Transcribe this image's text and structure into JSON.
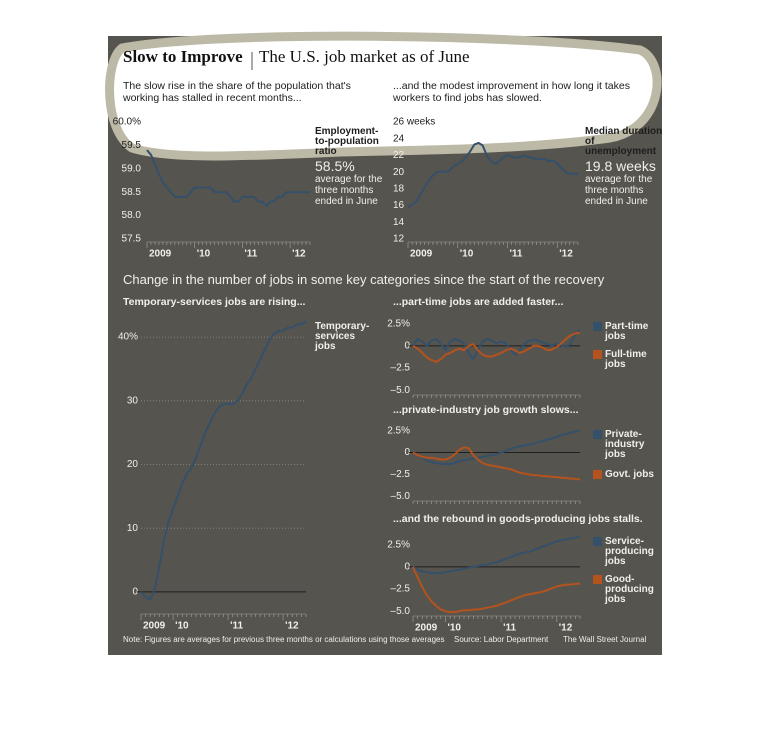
{
  "header": {
    "title": "Slow to Improve",
    "subtitle": "The U.S. job market as of June"
  },
  "section_title": "Change in the number of jobs in some key categories since the start of the recovery",
  "footer": {
    "note": "Note: Figures are averages for previous three months or calculations using those averages",
    "source": "Source: Labor Department",
    "credit": "The Wall Street Journal"
  },
  "chart_data": [
    {
      "type": "line",
      "title": "The slow rise in the share of the population that's working has stalled in recent months...",
      "categories": [
        "2009",
        null,
        null,
        null,
        null,
        null,
        null,
        null,
        null,
        null,
        null,
        null,
        "'10",
        null,
        null,
        null,
        null,
        null,
        null,
        null,
        null,
        null,
        null,
        null,
        "'11",
        null,
        null,
        null,
        null,
        null,
        null,
        null,
        null,
        null,
        null,
        null,
        "'12",
        null,
        null,
        null,
        null,
        null
      ],
      "ylim": [
        57.5,
        60.0
      ],
      "yticks": [
        57.5,
        {
          "value": 58.0,
          "label": "58.0"
        },
        58.5,
        {
          "value": 59.0,
          "label": "59.0"
        },
        59.5,
        {
          "value": 60.0,
          "label": "60.0%"
        }
      ],
      "grid": false,
      "series": [
        {
          "name": "Employment-to-population ratio",
          "color": "#34506a",
          "values": [
            59.4,
            59.3,
            59.1,
            58.9,
            58.7,
            58.6,
            58.5,
            58.4,
            58.4,
            58.4,
            58.4,
            58.5,
            58.6,
            58.6,
            58.6,
            58.6,
            58.6,
            58.5,
            58.5,
            58.5,
            58.5,
            58.4,
            58.3,
            58.3,
            58.4,
            58.4,
            58.4,
            58.4,
            58.3,
            58.3,
            58.2,
            58.3,
            58.3,
            58.4,
            58.4,
            58.5,
            58.5,
            58.5,
            58.5,
            58.5,
            58.5,
            58.5
          ]
        }
      ],
      "callout": "58.5%",
      "callout_note": "average for the three months ended in June"
    },
    {
      "type": "line",
      "title": "...and the modest improvement in how long it takes workers to find jobs has slowed.",
      "categories": [
        "2009",
        null,
        null,
        null,
        null,
        null,
        null,
        null,
        null,
        null,
        null,
        null,
        "'10",
        null,
        null,
        null,
        null,
        null,
        null,
        null,
        null,
        null,
        null,
        null,
        "'11",
        null,
        null,
        null,
        null,
        null,
        null,
        null,
        null,
        null,
        null,
        null,
        "'12",
        null,
        null,
        null,
        null,
        null
      ],
      "ylim": [
        12,
        26
      ],
      "yticks": [
        12,
        14,
        16,
        18,
        20,
        22,
        24,
        {
          "value": 26,
          "label": "26 weeks"
        }
      ],
      "grid": false,
      "series": [
        {
          "name": "Median duration of unemployment",
          "color": "#34506a",
          "values": [
            15.8,
            16.1,
            16.5,
            17.3,
            18.2,
            19.0,
            19.6,
            20.0,
            20.1,
            20.0,
            20.2,
            20.7,
            21.0,
            21.3,
            21.8,
            22.5,
            23.3,
            23.5,
            23.2,
            22.0,
            21.3,
            21.0,
            21.3,
            21.8,
            22.0,
            21.9,
            21.7,
            21.8,
            22.0,
            21.8,
            21.7,
            21.5,
            21.6,
            21.6,
            21.3,
            21.4,
            21.0,
            20.5,
            20.0,
            19.8,
            19.8,
            19.8
          ]
        }
      ],
      "callout": "19.8 weeks",
      "callout_note": "average for the three months ended in June"
    },
    {
      "type": "line",
      "title": "Temporary-services jobs are rising...",
      "categories": [
        "2009",
        null,
        null,
        null,
        null,
        null,
        null,
        "'10",
        null,
        null,
        null,
        null,
        null,
        null,
        null,
        null,
        null,
        null,
        null,
        "'11",
        null,
        null,
        null,
        null,
        null,
        null,
        null,
        null,
        null,
        null,
        null,
        "'12",
        null,
        null,
        null,
        null,
        null
      ],
      "ylim": [
        -3,
        43
      ],
      "yticks": [
        0,
        10,
        20,
        30,
        {
          "value": 40,
          "label": "40%"
        }
      ],
      "grid": true,
      "series": [
        {
          "name": "Temporary-services jobs",
          "color": "#34506a",
          "values": [
            0,
            -0.8,
            -1.2,
            0.5,
            4,
            8,
            11,
            13,
            15,
            17,
            18.5,
            19.5,
            21,
            23,
            25,
            26.5,
            28,
            29,
            29.5,
            29.5,
            29.5,
            30,
            31,
            32.5,
            33.5,
            35,
            36.5,
            38,
            39.5,
            40.5,
            41,
            41,
            41.5,
            41.5,
            42,
            42,
            42.5
          ]
        }
      ]
    },
    {
      "type": "line",
      "title": "...part-time jobs are added faster...",
      "ylim": [
        -5.2,
        3.6
      ],
      "yticks": [
        {
          "value": -5.0,
          "label": "–5.0"
        },
        {
          "value": -2.5,
          "label": "–2.5"
        },
        0,
        {
          "value": 2.5,
          "label": "2.5%"
        }
      ],
      "grid": false,
      "series": [
        {
          "name": "Part-time jobs",
          "color": "#34506a",
          "values": [
            0,
            0.8,
            0.5,
            0,
            0.6,
            0.8,
            0.2,
            -0.5,
            0.5,
            0.8,
            0.6,
            0.3,
            -0.8,
            -1.5,
            -0.5,
            0.5,
            0.8,
            0.6,
            0.3,
            0.5,
            0.3,
            -0.3,
            -1,
            -0.5,
            0.2,
            0.6,
            0.7,
            0.6,
            0.4,
            0.2,
            0,
            0.3,
            0.1,
            -0.1,
            0.3,
            1.3,
            1.8
          ]
        },
        {
          "name": "Full-time jobs",
          "color": "#b4531d",
          "values": [
            0,
            -0.3,
            -0.8,
            -1.3,
            -1.6,
            -1.8,
            -1.5,
            -1,
            -0.8,
            -0.5,
            -0.3,
            -0.5,
            0,
            0.2,
            -0.5,
            -1,
            -1.2,
            -1.2,
            -1,
            -0.8,
            -0.5,
            -0.3,
            -0.5,
            -0.8,
            -0.6,
            -0.3,
            0,
            0,
            -0.2,
            -0.5,
            -0.4,
            -0.1,
            0.3,
            0.8,
            1.2,
            1.4,
            1.5
          ]
        }
      ]
    },
    {
      "type": "line",
      "title": "...private-industry job growth slows...",
      "ylim": [
        -5.2,
        3.6
      ],
      "yticks": [
        {
          "value": -5.0,
          "label": "–5.0"
        },
        {
          "value": -2.5,
          "label": "–2.5"
        },
        0,
        {
          "value": 2.5,
          "label": "2.5%"
        }
      ],
      "grid": false,
      "series": [
        {
          "name": "Private-industry jobs",
          "color": "#34506a",
          "values": [
            0,
            -0.3,
            -0.6,
            -0.9,
            -1.1,
            -1.2,
            -1.3,
            -1.3,
            -1.3,
            -1.2,
            -1.0,
            -0.9,
            -0.8,
            -0.7,
            -0.6,
            -0.5,
            -0.4,
            -0.3,
            -0.2,
            0,
            0.2,
            0.4,
            0.6,
            0.7,
            0.8,
            0.9,
            1.0,
            1.2,
            1.3,
            1.5,
            1.6,
            1.8,
            2.0,
            2.1,
            2.3,
            2.4,
            2.5
          ]
        },
        {
          "name": "Govt. jobs",
          "color": "#b4531d",
          "values": [
            0,
            -0.3,
            -0.5,
            -0.6,
            -0.6,
            -0.7,
            -0.8,
            -0.8,
            -0.6,
            -0.2,
            0.3,
            0.6,
            0.5,
            -0.3,
            -0.8,
            -1.2,
            -1.4,
            -1.5,
            -1.6,
            -1.7,
            -1.8,
            -1.9,
            -2.1,
            -2.3,
            -2.4,
            -2.5,
            -2.6,
            -2.6,
            -2.7,
            -2.7,
            -2.8,
            -2.8,
            -2.9,
            -2.9,
            -3.0,
            -3.0,
            -3.1
          ]
        }
      ]
    },
    {
      "type": "line",
      "title": "...and the rebound in goods-producing jobs stalls.",
      "categories": [
        "2009",
        null,
        null,
        null,
        null,
        null,
        null,
        "'10",
        null,
        null,
        null,
        null,
        null,
        null,
        null,
        null,
        null,
        null,
        null,
        "'11",
        null,
        null,
        null,
        null,
        null,
        null,
        null,
        null,
        null,
        null,
        null,
        "'12",
        null,
        null,
        null,
        null,
        null
      ],
      "ylim": [
        -5.2,
        3.6
      ],
      "yticks": [
        {
          "value": -5.0,
          "label": "–5.0"
        },
        {
          "value": -2.5,
          "label": "–2.5"
        },
        0,
        {
          "value": 2.5,
          "label": "2.5%"
        }
      ],
      "grid": false,
      "series": [
        {
          "name": "Service-producing jobs",
          "color": "#34506a",
          "values": [
            0,
            -0.3,
            -0.5,
            -0.6,
            -0.7,
            -0.7,
            -0.7,
            -0.6,
            -0.5,
            -0.4,
            -0.3,
            -0.2,
            -0.1,
            0,
            0.1,
            0.2,
            0.3,
            0.4,
            0.5,
            0.7,
            0.9,
            1.1,
            1.3,
            1.5,
            1.6,
            1.7,
            1.9,
            2.1,
            2.3,
            2.5,
            2.7,
            2.9,
            3.0,
            3.1,
            3.2,
            3.3,
            3.4
          ]
        },
        {
          "name": "Good-producing jobs",
          "color": "#b4531d",
          "values": [
            0,
            -1.2,
            -2.3,
            -3.2,
            -3.9,
            -4.4,
            -4.8,
            -5.0,
            -5.1,
            -5.1,
            -5.0,
            -4.9,
            -4.9,
            -4.8,
            -4.8,
            -4.7,
            -4.6,
            -4.5,
            -4.4,
            -4.2,
            -4.0,
            -3.8,
            -3.6,
            -3.4,
            -3.2,
            -3.1,
            -3.0,
            -2.9,
            -2.8,
            -2.6,
            -2.4,
            -2.2,
            -2.1,
            -2.0,
            -2.0,
            -1.9,
            -1.9
          ]
        }
      ]
    }
  ]
}
